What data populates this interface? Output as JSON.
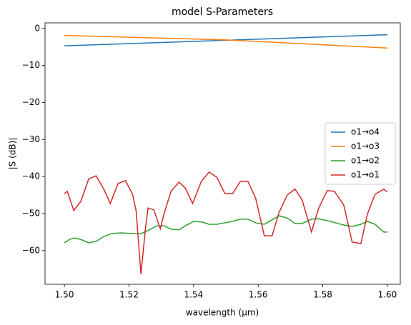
{
  "chart_data": {
    "type": "line",
    "title": "model S-Parameters",
    "x_label": "wavelength (µm)",
    "y_label": "|S (dB)|",
    "xlim": [
      1.494,
      1.604
    ],
    "ylim": [
      -69.1,
      1.5
    ],
    "xticks": [
      {
        "value": 1.5,
        "label": "1.50"
      },
      {
        "value": 1.52,
        "label": "1.52"
      },
      {
        "value": 1.54,
        "label": "1.54"
      },
      {
        "value": 1.56,
        "label": "1.56"
      },
      {
        "value": 1.58,
        "label": "1.58"
      },
      {
        "value": 1.6,
        "label": "1.60"
      }
    ],
    "yticks": [
      {
        "value": 0,
        "label": "0"
      },
      {
        "value": -10,
        "label": "−10"
      },
      {
        "value": -20,
        "label": "−20"
      },
      {
        "value": -30,
        "label": "−30"
      },
      {
        "value": -40,
        "label": "−40"
      },
      {
        "value": -50,
        "label": "−50"
      },
      {
        "value": -60,
        "label": "−60"
      }
    ],
    "grid": false,
    "legend": "center right",
    "series": [
      {
        "name": "o1→o4",
        "color": "#1f77b4",
        "x": [
          1.5,
          1.55,
          1.6
        ],
        "values": [
          -4.7,
          -3.2,
          -1.7
        ]
      },
      {
        "name": "o1→o3",
        "color": "#ff7f0e",
        "x": [
          1.5,
          1.55,
          1.6
        ],
        "values": [
          -1.9,
          -3.1,
          -5.3
        ]
      },
      {
        "name": "o1→o2",
        "color": "#2ca02c",
        "x": [
          1.5,
          1.5016,
          1.5029,
          1.5051,
          1.5075,
          1.5098,
          1.5122,
          1.5146,
          1.5175,
          1.5211,
          1.5237,
          1.5259,
          1.5286,
          1.5308,
          1.533,
          1.5355,
          1.5379,
          1.5401,
          1.5426,
          1.5448,
          1.5472,
          1.5497,
          1.5521,
          1.5545,
          1.5568,
          1.5592,
          1.5619,
          1.5643,
          1.5665,
          1.569,
          1.5714,
          1.5736,
          1.5765,
          1.5787,
          1.5814,
          1.584,
          1.5865,
          1.5891,
          1.5918,
          1.5938,
          1.5962,
          1.5989,
          1.6
        ],
        "values": [
          -57.9,
          -57,
          -56.6,
          -57,
          -57.9,
          -57.5,
          -56.2,
          -55.4,
          -55.2,
          -55.4,
          -55.4,
          -54.6,
          -53.3,
          -53.3,
          -54.2,
          -54.4,
          -53.1,
          -52.1,
          -52.3,
          -52.9,
          -52.9,
          -52.5,
          -52.1,
          -51.5,
          -51.5,
          -52.5,
          -52.9,
          -51.7,
          -50.6,
          -51.2,
          -52.7,
          -52.7,
          -51.5,
          -51.4,
          -51.9,
          -52.5,
          -53.1,
          -53.5,
          -52.9,
          -52.1,
          -52.9,
          -55,
          -55
        ]
      },
      {
        "name": "o1→o1",
        "color": "#d62728",
        "x": [
          1.5,
          1.5009,
          1.5029,
          1.5051,
          1.5075,
          1.5098,
          1.5122,
          1.5142,
          1.5166,
          1.5189,
          1.5211,
          1.5222,
          1.5237,
          1.5251,
          1.5259,
          1.5277,
          1.5297,
          1.5308,
          1.533,
          1.5355,
          1.5375,
          1.5397,
          1.5424,
          1.5448,
          1.5472,
          1.5497,
          1.5521,
          1.5545,
          1.5568,
          1.5592,
          1.5619,
          1.5643,
          1.5665,
          1.569,
          1.5714,
          1.5736,
          1.5765,
          1.5787,
          1.5814,
          1.5836,
          1.5865,
          1.5891,
          1.5918,
          1.5938,
          1.5962,
          1.5989,
          1.6
        ],
        "values": [
          -44.6,
          -44,
          -49.2,
          -46.7,
          -40.7,
          -39.8,
          -43.4,
          -47.3,
          -41.9,
          -41.1,
          -44.8,
          -49.2,
          -66.4,
          -54,
          -48.5,
          -49,
          -54.1,
          -50.2,
          -44,
          -41.5,
          -43.2,
          -47.3,
          -41.3,
          -38.8,
          -40.2,
          -44.6,
          -44.6,
          -41.3,
          -41.3,
          -45.8,
          -56,
          -56,
          -49.6,
          -45,
          -43.4,
          -46.3,
          -55,
          -48.6,
          -43.8,
          -44,
          -47.7,
          -57.7,
          -58.1,
          -50.2,
          -44.8,
          -43.4,
          -44.2
        ]
      }
    ]
  }
}
